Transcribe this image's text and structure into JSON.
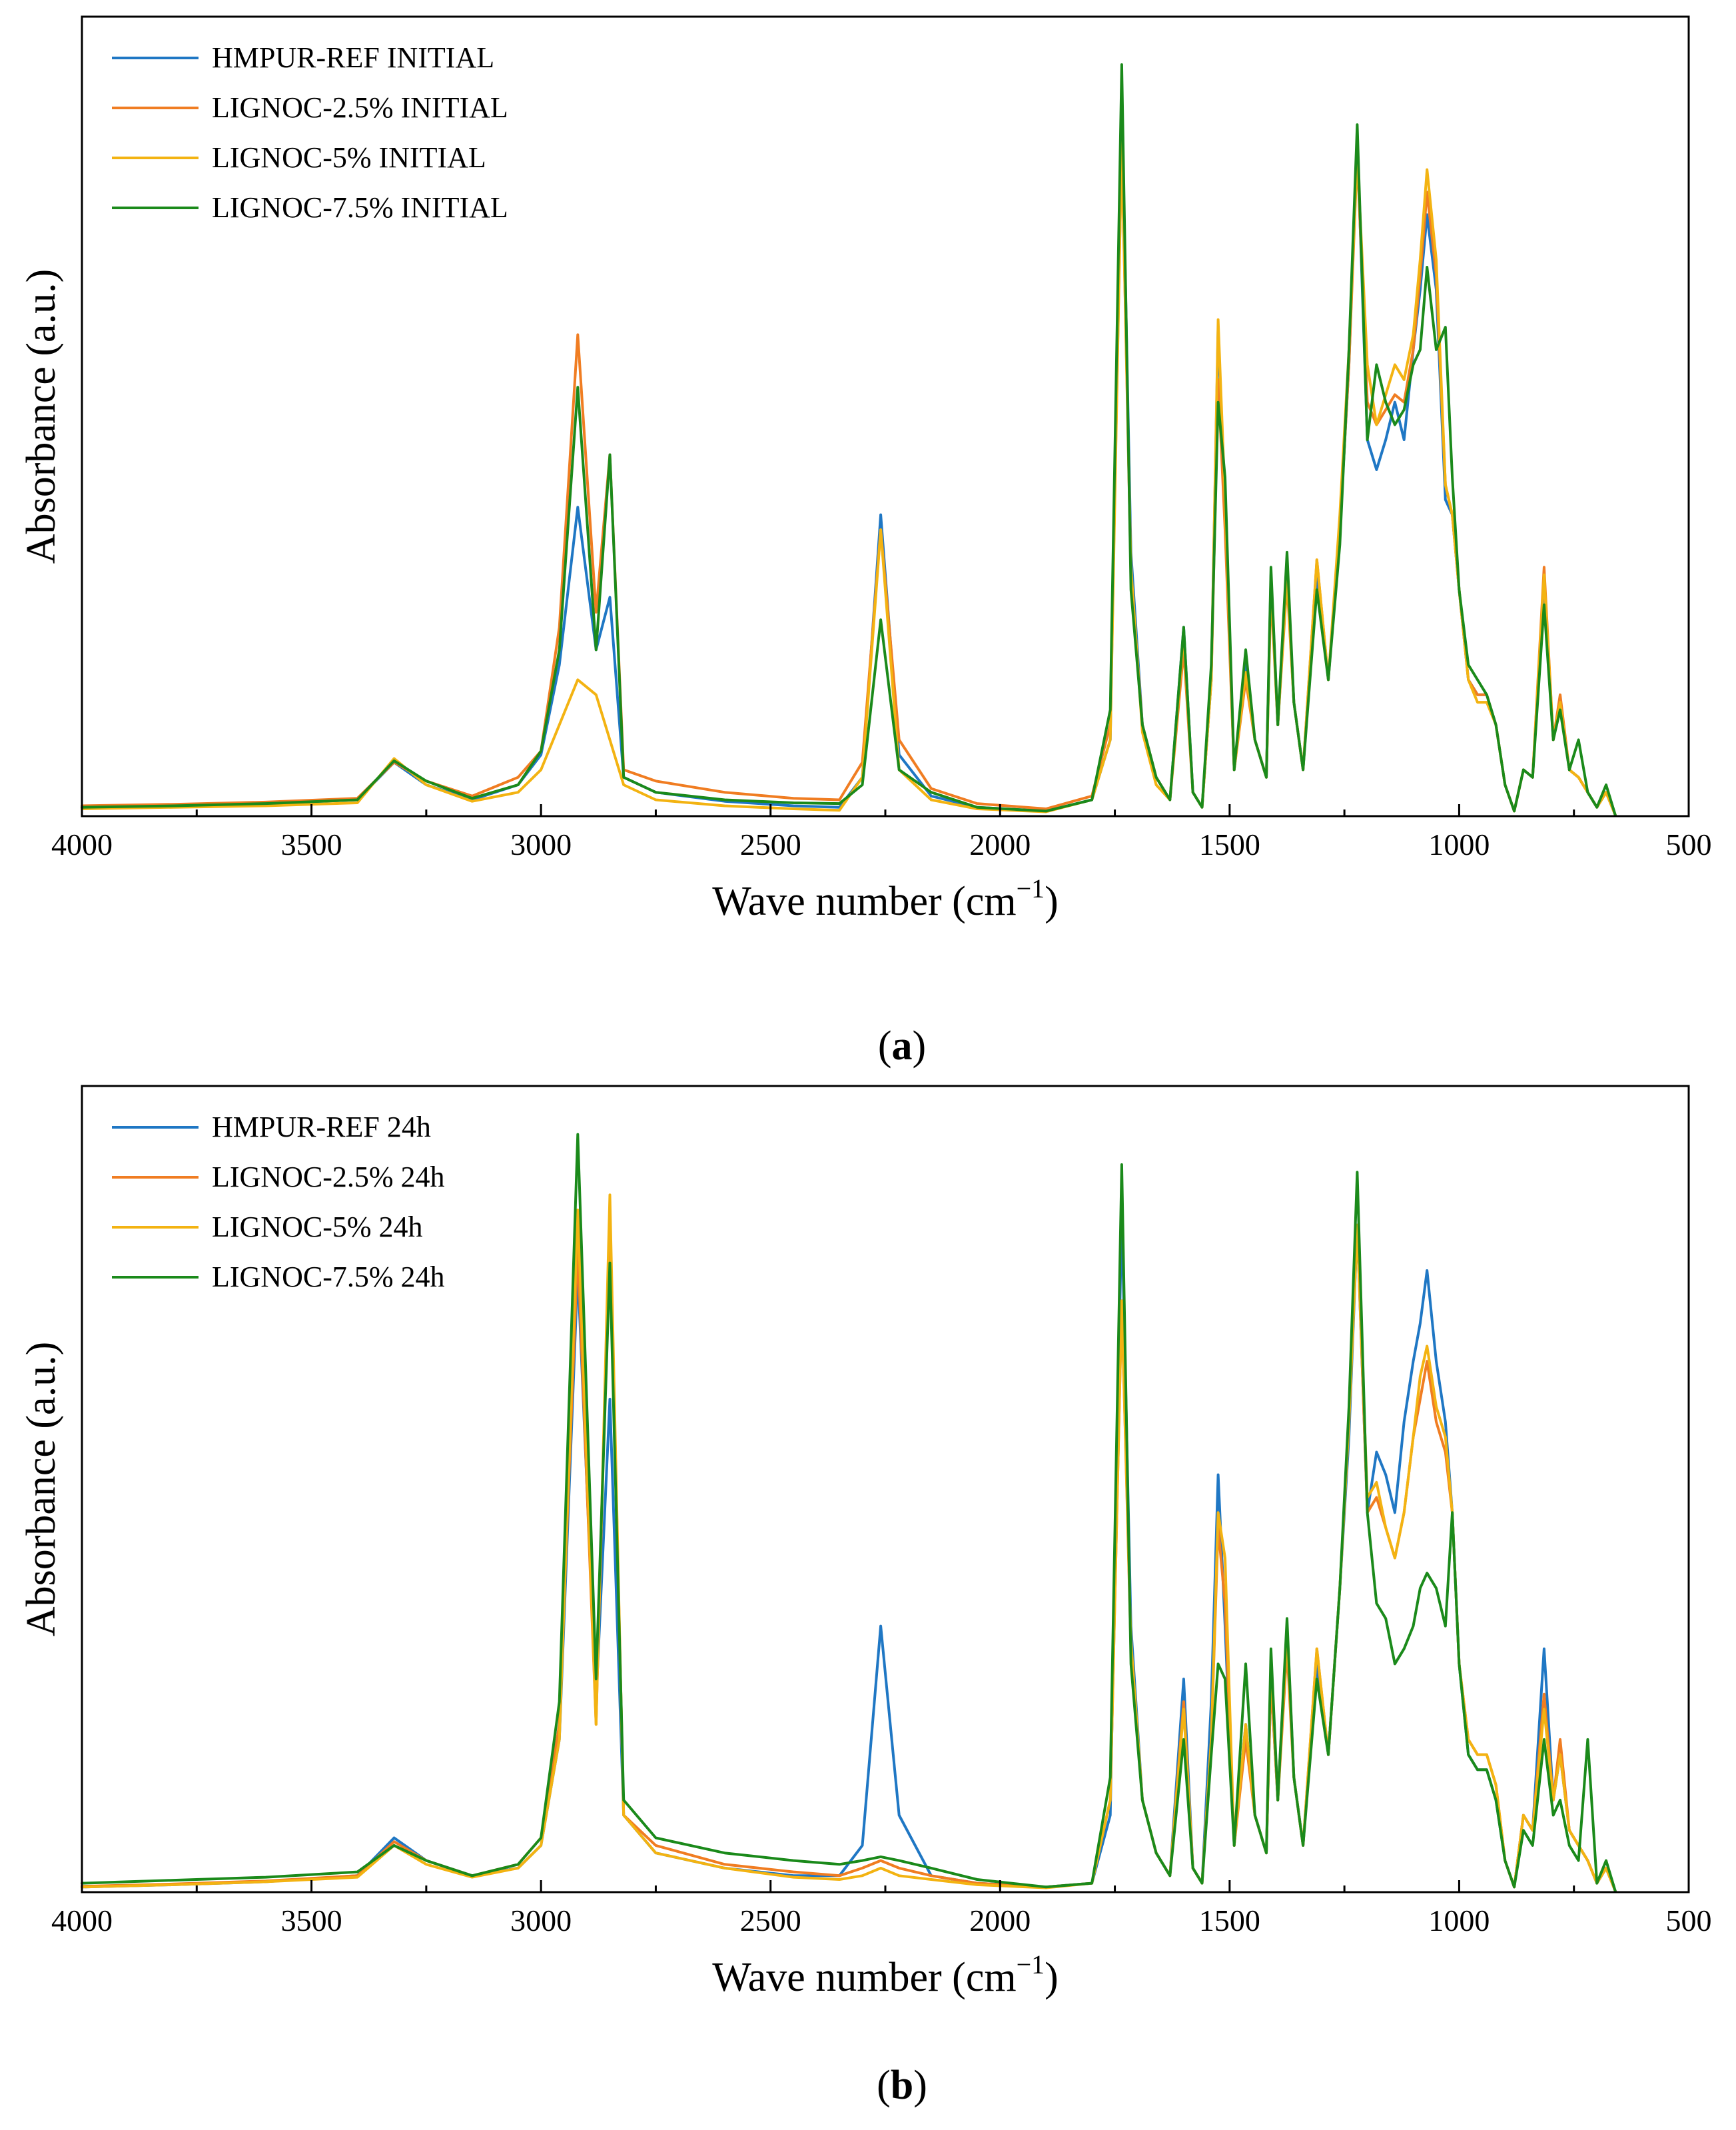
{
  "chart_data": [
    {
      "type": "line",
      "panel": "a",
      "caption_open": "(",
      "caption_letter": "a",
      "caption_close": ")",
      "xlabel_text": "Wave number (cm",
      "xlabel_sup": "−1",
      "xlabel_close": ")",
      "ylabel": "Absorbance (a.u.)",
      "xlim": [
        4000,
        500
      ],
      "ylim": [
        0,
        1
      ],
      "x_ticks": [
        "4000",
        "3500",
        "3000",
        "2500",
        "2000",
        "1500",
        "1000",
        "500"
      ],
      "x_tick_values": [
        4000,
        3500,
        3000,
        2500,
        2000,
        1500,
        1000,
        500
      ],
      "legend_position": "top-left",
      "x": [
        4000,
        3800,
        3600,
        3400,
        3320,
        3250,
        3150,
        3050,
        3000,
        2960,
        2920,
        2880,
        2850,
        2820,
        2750,
        2600,
        2450,
        2350,
        2300,
        2260,
        2220,
        2150,
        2050,
        1900,
        1800,
        1760,
        1735,
        1715,
        1690,
        1660,
        1630,
        1600,
        1580,
        1560,
        1540,
        1525,
        1510,
        1490,
        1465,
        1445,
        1420,
        1410,
        1395,
        1375,
        1360,
        1340,
        1310,
        1285,
        1260,
        1240,
        1222,
        1200,
        1180,
        1160,
        1140,
        1120,
        1100,
        1085,
        1070,
        1050,
        1030,
        1015,
        1000,
        980,
        960,
        940,
        920,
        900,
        880,
        860,
        840,
        815,
        795,
        780,
        760,
        740,
        720,
        700,
        680,
        660
      ],
      "series": [
        {
          "name": "HMPUR-REF INITIAL",
          "color": "#1f77c4",
          "values": [
            0.01,
            0.012,
            0.015,
            0.02,
            0.07,
            0.04,
            0.02,
            0.04,
            0.08,
            0.2,
            0.41,
            0.22,
            0.29,
            0.05,
            0.03,
            0.018,
            0.012,
            0.01,
            0.05,
            0.4,
            0.08,
            0.025,
            0.01,
            0.005,
            0.02,
            0.1,
            0.95,
            0.35,
            0.12,
            0.05,
            0.02,
            0.25,
            0.03,
            0.01,
            0.18,
            0.65,
            0.4,
            0.06,
            0.2,
            0.1,
            0.05,
            0.32,
            0.12,
            0.33,
            0.15,
            0.06,
            0.32,
            0.18,
            0.38,
            0.6,
            0.9,
            0.5,
            0.46,
            0.5,
            0.55,
            0.5,
            0.62,
            0.7,
            0.8,
            0.7,
            0.42,
            0.4,
            0.3,
            0.18,
            0.16,
            0.16,
            0.12,
            0.04,
            0.005,
            0.06,
            0.05,
            0.3,
            0.1,
            0.15,
            0.06,
            0.05,
            0.03,
            0.01,
            0.03,
            0.0
          ]
        },
        {
          "name": "LIGNOC-2.5% INITIAL",
          "color": "#f07d22",
          "values": [
            0.012,
            0.014,
            0.017,
            0.022,
            0.07,
            0.045,
            0.025,
            0.05,
            0.085,
            0.25,
            0.64,
            0.27,
            0.48,
            0.06,
            0.045,
            0.03,
            0.022,
            0.02,
            0.07,
            0.38,
            0.1,
            0.035,
            0.015,
            0.008,
            0.025,
            0.12,
            0.9,
            0.32,
            0.12,
            0.05,
            0.02,
            0.22,
            0.03,
            0.01,
            0.18,
            0.58,
            0.38,
            0.06,
            0.18,
            0.1,
            0.05,
            0.3,
            0.12,
            0.31,
            0.15,
            0.06,
            0.34,
            0.18,
            0.38,
            0.6,
            0.88,
            0.55,
            0.52,
            0.54,
            0.56,
            0.55,
            0.62,
            0.72,
            0.83,
            0.72,
            0.44,
            0.4,
            0.3,
            0.18,
            0.16,
            0.16,
            0.12,
            0.04,
            0.005,
            0.06,
            0.05,
            0.33,
            0.1,
            0.16,
            0.06,
            0.05,
            0.03,
            0.01,
            0.03,
            0.0
          ]
        },
        {
          "name": "LIGNOC-5% INITIAL",
          "color": "#f3b312",
          "values": [
            0.008,
            0.01,
            0.012,
            0.016,
            0.075,
            0.04,
            0.018,
            0.03,
            0.06,
            0.12,
            0.18,
            0.16,
            0.1,
            0.04,
            0.02,
            0.012,
            0.008,
            0.006,
            0.05,
            0.38,
            0.06,
            0.02,
            0.008,
            0.004,
            0.02,
            0.1,
            0.9,
            0.33,
            0.11,
            0.04,
            0.02,
            0.24,
            0.03,
            0.01,
            0.18,
            0.66,
            0.42,
            0.06,
            0.19,
            0.1,
            0.05,
            0.31,
            0.12,
            0.32,
            0.15,
            0.06,
            0.34,
            0.18,
            0.4,
            0.62,
            0.88,
            0.6,
            0.52,
            0.56,
            0.6,
            0.58,
            0.64,
            0.74,
            0.86,
            0.74,
            0.44,
            0.4,
            0.3,
            0.18,
            0.15,
            0.15,
            0.12,
            0.04,
            0.005,
            0.06,
            0.05,
            0.32,
            0.1,
            0.15,
            0.06,
            0.05,
            0.03,
            0.01,
            0.03,
            0.0
          ]
        },
        {
          "name": "LIGNOC-7.5% INITIAL",
          "color": "#1b8a1b",
          "values": [
            0.01,
            0.012,
            0.015,
            0.02,
            0.072,
            0.045,
            0.022,
            0.04,
            0.085,
            0.22,
            0.57,
            0.22,
            0.48,
            0.05,
            0.03,
            0.02,
            0.016,
            0.015,
            0.04,
            0.26,
            0.06,
            0.03,
            0.01,
            0.005,
            0.02,
            0.14,
            1.0,
            0.3,
            0.12,
            0.05,
            0.02,
            0.25,
            0.03,
            0.01,
            0.2,
            0.55,
            0.45,
            0.06,
            0.22,
            0.1,
            0.05,
            0.33,
            0.12,
            0.35,
            0.15,
            0.06,
            0.3,
            0.18,
            0.36,
            0.62,
            0.92,
            0.5,
            0.6,
            0.55,
            0.52,
            0.54,
            0.6,
            0.62,
            0.73,
            0.62,
            0.65,
            0.45,
            0.3,
            0.2,
            0.18,
            0.16,
            0.12,
            0.04,
            0.005,
            0.06,
            0.05,
            0.28,
            0.1,
            0.14,
            0.06,
            0.1,
            0.03,
            0.01,
            0.04,
            0.0
          ]
        }
      ]
    },
    {
      "type": "line",
      "panel": "b",
      "caption_open": "(",
      "caption_letter": "b",
      "caption_close": ")",
      "xlabel_text": "Wave number (cm",
      "xlabel_sup": "−1",
      "xlabel_close": ")",
      "ylabel": "Absorbance (a.u.)",
      "xlim": [
        4000,
        500
      ],
      "ylim": [
        0,
        1
      ],
      "x_ticks": [
        "4000",
        "3500",
        "3000",
        "2500",
        "2000",
        "1500",
        "1000",
        "500"
      ],
      "x_tick_values": [
        4000,
        3500,
        3000,
        2500,
        2000,
        1500,
        1000,
        500
      ],
      "legend_position": "top-left",
      "x": [
        4000,
        3800,
        3600,
        3400,
        3320,
        3250,
        3150,
        3050,
        3000,
        2960,
        2920,
        2880,
        2850,
        2820,
        2750,
        2600,
        2450,
        2350,
        2300,
        2260,
        2220,
        2150,
        2050,
        1900,
        1800,
        1760,
        1735,
        1715,
        1690,
        1660,
        1630,
        1600,
        1580,
        1560,
        1540,
        1525,
        1510,
        1490,
        1465,
        1445,
        1420,
        1410,
        1395,
        1375,
        1360,
        1340,
        1310,
        1285,
        1260,
        1240,
        1222,
        1200,
        1180,
        1160,
        1140,
        1120,
        1100,
        1085,
        1070,
        1050,
        1030,
        1015,
        1000,
        980,
        960,
        940,
        920,
        900,
        880,
        860,
        840,
        815,
        795,
        780,
        760,
        740,
        720,
        700,
        680,
        660
      ],
      "series": [
        {
          "name": "HMPUR-REF 24h",
          "color": "#1f77c4",
          "values": [
            0.005,
            0.008,
            0.012,
            0.02,
            0.07,
            0.04,
            0.02,
            0.03,
            0.06,
            0.2,
            0.82,
            0.25,
            0.65,
            0.1,
            0.05,
            0.03,
            0.02,
            0.02,
            0.06,
            0.35,
            0.1,
            0.02,
            0.01,
            0.005,
            0.01,
            0.1,
            0.9,
            0.35,
            0.12,
            0.05,
            0.02,
            0.28,
            0.03,
            0.01,
            0.25,
            0.55,
            0.35,
            0.06,
            0.22,
            0.1,
            0.05,
            0.28,
            0.12,
            0.35,
            0.15,
            0.06,
            0.3,
            0.18,
            0.4,
            0.6,
            0.88,
            0.5,
            0.58,
            0.55,
            0.5,
            0.62,
            0.7,
            0.75,
            0.82,
            0.7,
            0.62,
            0.5,
            0.3,
            0.18,
            0.16,
            0.16,
            0.12,
            0.04,
            0.005,
            0.1,
            0.08,
            0.32,
            0.12,
            0.18,
            0.08,
            0.06,
            0.04,
            0.01,
            0.03,
            0.0
          ]
        },
        {
          "name": "LIGNOC-2.5% 24h",
          "color": "#f07d22",
          "values": [
            0.006,
            0.009,
            0.013,
            0.02,
            0.065,
            0.04,
            0.02,
            0.035,
            0.07,
            0.22,
            0.85,
            0.22,
            0.9,
            0.1,
            0.06,
            0.035,
            0.025,
            0.02,
            0.03,
            0.04,
            0.03,
            0.02,
            0.01,
            0.005,
            0.01,
            0.12,
            0.78,
            0.32,
            0.12,
            0.05,
            0.02,
            0.25,
            0.03,
            0.01,
            0.2,
            0.48,
            0.38,
            0.06,
            0.2,
            0.1,
            0.05,
            0.28,
            0.12,
            0.32,
            0.15,
            0.06,
            0.32,
            0.18,
            0.4,
            0.62,
            0.88,
            0.5,
            0.52,
            0.48,
            0.44,
            0.5,
            0.6,
            0.65,
            0.7,
            0.62,
            0.58,
            0.5,
            0.3,
            0.2,
            0.18,
            0.18,
            0.14,
            0.04,
            0.005,
            0.1,
            0.08,
            0.26,
            0.12,
            0.2,
            0.08,
            0.06,
            0.04,
            0.01,
            0.03,
            0.0
          ]
        },
        {
          "name": "LIGNOC-5% 24h",
          "color": "#f3b312",
          "values": [
            0.005,
            0.008,
            0.012,
            0.018,
            0.06,
            0.035,
            0.018,
            0.03,
            0.06,
            0.2,
            0.9,
            0.22,
            0.92,
            0.1,
            0.05,
            0.03,
            0.018,
            0.015,
            0.02,
            0.03,
            0.02,
            0.015,
            0.008,
            0.004,
            0.01,
            0.12,
            0.78,
            0.33,
            0.12,
            0.05,
            0.02,
            0.24,
            0.03,
            0.01,
            0.2,
            0.5,
            0.44,
            0.06,
            0.22,
            0.1,
            0.05,
            0.3,
            0.12,
            0.34,
            0.15,
            0.06,
            0.32,
            0.18,
            0.4,
            0.62,
            0.88,
            0.52,
            0.54,
            0.48,
            0.44,
            0.5,
            0.6,
            0.68,
            0.72,
            0.64,
            0.6,
            0.5,
            0.3,
            0.2,
            0.18,
            0.18,
            0.14,
            0.04,
            0.005,
            0.1,
            0.08,
            0.24,
            0.12,
            0.18,
            0.08,
            0.06,
            0.04,
            0.01,
            0.03,
            0.0
          ]
        },
        {
          "name": "LIGNOC-7.5% 24h",
          "color": "#1b8a1b",
          "values": [
            0.01,
            0.014,
            0.018,
            0.025,
            0.06,
            0.04,
            0.02,
            0.035,
            0.07,
            0.25,
            1.0,
            0.28,
            0.83,
            0.12,
            0.07,
            0.05,
            0.04,
            0.035,
            0.04,
            0.045,
            0.04,
            0.03,
            0.015,
            0.005,
            0.01,
            0.15,
            0.96,
            0.3,
            0.12,
            0.05,
            0.02,
            0.2,
            0.03,
            0.01,
            0.18,
            0.3,
            0.28,
            0.06,
            0.3,
            0.1,
            0.05,
            0.32,
            0.12,
            0.36,
            0.15,
            0.06,
            0.28,
            0.18,
            0.4,
            0.64,
            0.95,
            0.5,
            0.38,
            0.36,
            0.3,
            0.32,
            0.35,
            0.4,
            0.42,
            0.4,
            0.35,
            0.5,
            0.3,
            0.18,
            0.16,
            0.16,
            0.12,
            0.04,
            0.005,
            0.08,
            0.06,
            0.2,
            0.1,
            0.12,
            0.06,
            0.04,
            0.2,
            0.01,
            0.04,
            0.0
          ]
        }
      ]
    }
  ]
}
